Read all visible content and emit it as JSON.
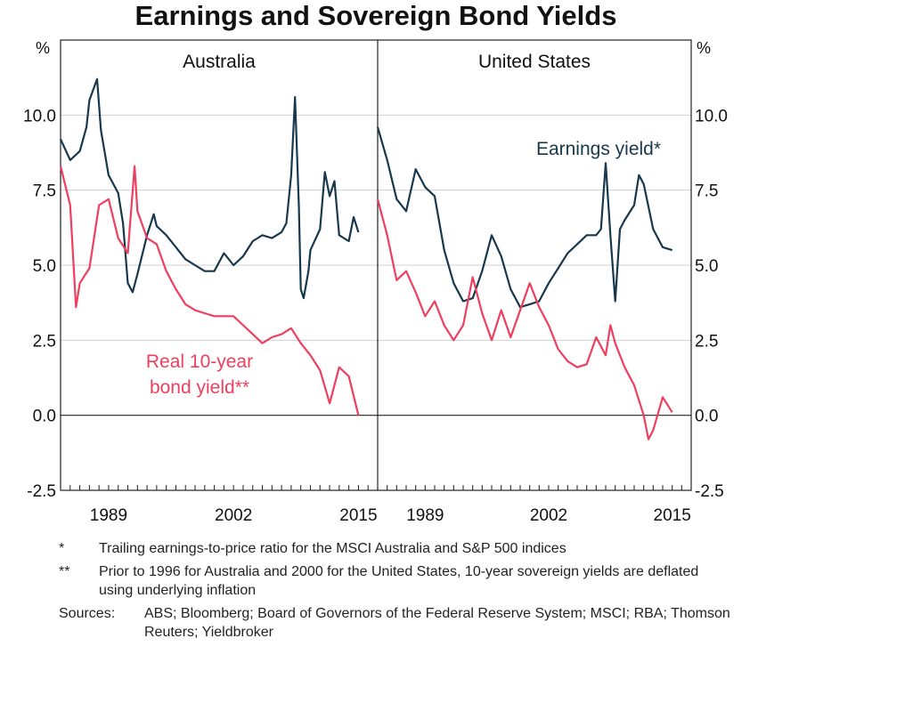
{
  "chart_data": {
    "type": "line",
    "title": "Earnings and Sovereign Bond Yields",
    "ylabel": "%",
    "ylim": [
      -2.5,
      12.5
    ],
    "yticks": [
      "-2.5",
      "0.0",
      "2.5",
      "5.0",
      "7.5",
      "10.0"
    ],
    "xlim": [
      1984,
      2017
    ],
    "xtick_labels": [
      "1989",
      "2002",
      "2015"
    ],
    "xticks": [
      1989,
      2002,
      2015
    ],
    "grid": true,
    "colors": {
      "earnings": "#17384d",
      "real_bond": "#ef3f5f"
    },
    "series_labels": {
      "earnings": "Earnings yield*",
      "real_bond_line1": "Real 10-year",
      "real_bond_line2": "bond yield**"
    },
    "panels": [
      {
        "name": "Australia",
        "series": [
          {
            "name": "Earnings yield*",
            "x": [
              1984,
              1985,
              1986,
              1986.7,
              1987,
              1987.8,
              1988.2,
              1989,
              1990,
              1990.5,
              1991,
              1991.5,
              1992,
              1993,
              1993.7,
              1994,
              1995,
              1996,
              1997,
              1998,
              1999,
              2000,
              2001,
              2002,
              2003,
              2004,
              2005,
              2006,
              2007,
              2007.5,
              2008,
              2008.4,
              2008.8,
              2009,
              2009.3,
              2009.8,
              2010,
              2011,
              2011.5,
              2012,
              2012.5,
              2013,
              2014,
              2014.5,
              2015
            ],
            "y": [
              9.2,
              8.5,
              8.8,
              9.6,
              10.5,
              11.2,
              9.5,
              8.0,
              7.4,
              6.4,
              4.4,
              4.1,
              4.7,
              6.0,
              6.7,
              6.3,
              6.0,
              5.6,
              5.2,
              5.0,
              4.8,
              4.8,
              5.4,
              5.0,
              5.3,
              5.8,
              6.0,
              5.9,
              6.1,
              6.4,
              8.0,
              10.6,
              7.0,
              4.2,
              3.9,
              4.8,
              5.5,
              6.2,
              8.1,
              7.3,
              7.8,
              6.0,
              5.8,
              6.6,
              6.1
            ]
          },
          {
            "name": "Real 10-year bond yield**",
            "x": [
              1984,
              1985,
              1985.6,
              1986,
              1987,
              1988,
              1989,
              1990,
              1991,
              1991.7,
              1992,
              1993,
              1994,
              1995,
              1996,
              1997,
              1998,
              1999,
              2000,
              2001,
              2002,
              2003,
              2004,
              2005,
              2006,
              2007,
              2008,
              2009,
              2010,
              2011,
              2012,
              2013,
              2014,
              2015
            ],
            "y": [
              8.3,
              7.0,
              3.6,
              4.4,
              4.9,
              7.0,
              7.2,
              5.9,
              5.4,
              8.3,
              6.8,
              5.9,
              5.7,
              4.8,
              4.2,
              3.7,
              3.5,
              3.4,
              3.3,
              3.3,
              3.3,
              3.0,
              2.7,
              2.4,
              2.6,
              2.7,
              2.9,
              2.4,
              2.0,
              1.5,
              0.4,
              1.6,
              1.3,
              0.0
            ]
          }
        ]
      },
      {
        "name": "United States",
        "series": [
          {
            "name": "Earnings yield*",
            "x": [
              1984,
              1985,
              1986,
              1987,
              1988,
              1989,
              1990,
              1991,
              1992,
              1993,
              1994,
              1995,
              1996,
              1997,
              1998,
              1999,
              2000,
              2001,
              2002,
              2003,
              2004,
              2005,
              2006,
              2007,
              2007.5,
              2008,
              2008.5,
              2009,
              2009.5,
              2010,
              2011,
              2011.5,
              2012,
              2013,
              2014,
              2015
            ],
            "y": [
              9.6,
              8.5,
              7.2,
              6.8,
              8.2,
              7.6,
              7.3,
              5.5,
              4.4,
              3.8,
              3.9,
              4.8,
              6.0,
              5.3,
              4.2,
              3.6,
              3.7,
              3.8,
              4.4,
              4.9,
              5.4,
              5.7,
              6.0,
              6.0,
              6.2,
              8.4,
              6.0,
              3.8,
              6.2,
              6.5,
              7.0,
              8.0,
              7.7,
              6.2,
              5.6,
              5.5
            ]
          },
          {
            "name": "Real 10-year bond yield**",
            "x": [
              1984,
              1985,
              1986,
              1987,
              1988,
              1989,
              1990,
              1991,
              1992,
              1993,
              1994,
              1995,
              1996,
              1997,
              1998,
              1999,
              2000,
              2001,
              2002,
              2003,
              2004,
              2005,
              2006,
              2007,
              2008,
              2008.5,
              2009,
              2010,
              2011,
              2012,
              2012.5,
              2013,
              2014,
              2015
            ],
            "y": [
              7.2,
              6.0,
              4.5,
              4.8,
              4.1,
              3.3,
              3.8,
              3.0,
              2.5,
              3.0,
              4.6,
              3.4,
              2.5,
              3.5,
              2.6,
              3.5,
              4.4,
              3.6,
              3.0,
              2.2,
              1.8,
              1.6,
              1.7,
              2.6,
              2.0,
              3.0,
              2.4,
              1.6,
              1.0,
              0.0,
              -0.8,
              -0.5,
              0.6,
              0.1
            ]
          }
        ]
      }
    ]
  },
  "notes": {
    "note1": {
      "mark": "*",
      "text": "Trailing earnings-to-price ratio for the MSCI Australia and S&P 500 indices"
    },
    "note2": {
      "mark": "**",
      "text": "Prior to 1996 for Australia and 2000 for the United States, 10-year sovereign yields are deflated using underlying inflation"
    },
    "sources": {
      "label": "Sources:",
      "text": "ABS; Bloomberg; Board of Governors of the Federal Reserve System; MSCI; RBA; Thomson Reuters; Yieldbroker"
    }
  }
}
